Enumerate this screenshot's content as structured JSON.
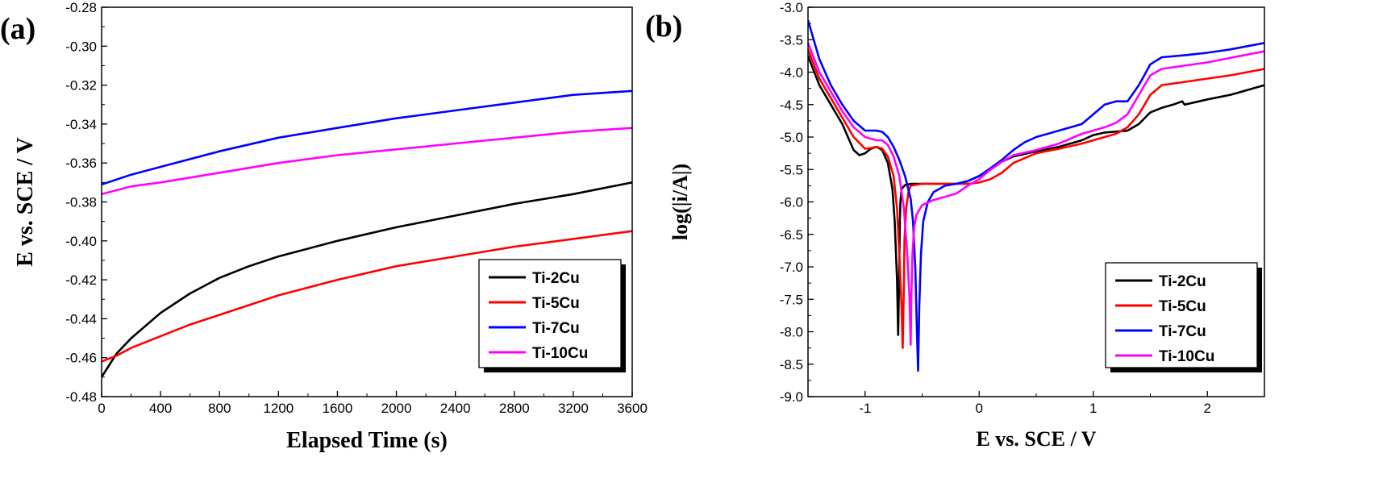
{
  "chart_data": [
    {
      "panel": "(a)",
      "type": "line",
      "xlabel": "Elapsed Time (s)",
      "ylabel": "E vs. SCE / V",
      "xlim": [
        0,
        3600
      ],
      "ylim": [
        -0.48,
        -0.28
      ],
      "xticks": [
        0,
        400,
        800,
        1200,
        1600,
        2000,
        2400,
        2800,
        3200,
        3600
      ],
      "xtick_labels": [
        "0",
        "400",
        "800",
        "1200",
        "1600",
        "2000",
        "2400",
        "2800",
        "3200",
        "3600"
      ],
      "yticks": [
        -0.28,
        -0.3,
        -0.32,
        -0.34,
        -0.36,
        -0.38,
        -0.4,
        -0.42,
        -0.44,
        -0.46,
        -0.48
      ],
      "ytick_labels": [
        "-0.28",
        "-0.30",
        "-0.32",
        "-0.34",
        "-0.36",
        "-0.38",
        "-0.40",
        "-0.42",
        "-0.44",
        "-0.46",
        "-0.48"
      ],
      "legend_position": "bottom-right",
      "series": [
        {
          "name": "Ti-2Cu",
          "color": "#000000",
          "x": [
            0,
            100,
            200,
            400,
            600,
            800,
            1000,
            1200,
            1600,
            2000,
            2400,
            2800,
            3200,
            3600
          ],
          "y": [
            -0.47,
            -0.458,
            -0.45,
            -0.437,
            -0.427,
            -0.419,
            -0.413,
            -0.408,
            -0.4,
            -0.393,
            -0.387,
            -0.381,
            -0.376,
            -0.37
          ]
        },
        {
          "name": "Ti-5Cu",
          "color": "#ff0000",
          "x": [
            0,
            100,
            200,
            400,
            600,
            800,
            1000,
            1200,
            1600,
            2000,
            2400,
            2800,
            3200,
            3600
          ],
          "y": [
            -0.462,
            -0.459,
            -0.455,
            -0.449,
            -0.443,
            -0.438,
            -0.433,
            -0.428,
            -0.42,
            -0.413,
            -0.408,
            -0.403,
            -0.399,
            -0.395
          ]
        },
        {
          "name": "Ti-7Cu",
          "color": "#0000ff",
          "x": [
            0,
            200,
            400,
            800,
            1200,
            1600,
            2000,
            2400,
            2800,
            3200,
            3600
          ],
          "y": [
            -0.371,
            -0.366,
            -0.362,
            -0.354,
            -0.347,
            -0.342,
            -0.337,
            -0.333,
            -0.329,
            -0.325,
            -0.323
          ]
        },
        {
          "name": "Ti-10Cu",
          "color": "#ff00ff",
          "x": [
            0,
            200,
            400,
            800,
            1200,
            1600,
            2000,
            2400,
            2800,
            3200,
            3600
          ],
          "y": [
            -0.376,
            -0.372,
            -0.37,
            -0.365,
            -0.36,
            -0.356,
            -0.353,
            -0.35,
            -0.347,
            -0.344,
            -0.342
          ]
        }
      ]
    },
    {
      "panel": "(b)",
      "type": "line",
      "xlabel": "E vs. SCE / V",
      "ylabel": "log(|i/A|)",
      "xlim": [
        -1.5,
        2.5
      ],
      "ylim": [
        -9.0,
        -3.0
      ],
      "xticks": [
        -1,
        0,
        1,
        2
      ],
      "xtick_labels": [
        "-1",
        "0",
        "1",
        "2"
      ],
      "yticks": [
        -3.0,
        -3.5,
        -4.0,
        -4.5,
        -5.0,
        -5.5,
        -6.0,
        -6.5,
        -7.0,
        -7.5,
        -8.0,
        -8.5,
        -9.0
      ],
      "ytick_labels": [
        "-3.0",
        "-3.5",
        "-4.0",
        "-4.5",
        "-5.0",
        "-5.5",
        "-6.0",
        "-6.5",
        "-7.0",
        "-7.5",
        "-8.0",
        "-8.5",
        "-9.0"
      ],
      "legend_position": "bottom-right",
      "series": [
        {
          "name": "Ti-2Cu",
          "color": "#000000",
          "x": [
            -1.5,
            -1.4,
            -1.3,
            -1.2,
            -1.1,
            -1.05,
            -1.0,
            -0.95,
            -0.9,
            -0.85,
            -0.8,
            -0.76,
            -0.74,
            -0.72,
            -0.71,
            -0.7,
            -0.695,
            -0.69,
            -0.68,
            -0.65,
            -0.6,
            -0.5,
            -0.4,
            -0.3,
            -0.2,
            -0.1,
            0.0,
            0.1,
            0.2,
            0.3,
            0.5,
            0.7,
            0.9,
            1.0,
            1.1,
            1.3,
            1.4,
            1.5,
            1.6,
            1.7,
            1.78,
            1.8,
            2.0,
            2.2,
            2.5
          ],
          "y": [
            -3.75,
            -4.2,
            -4.5,
            -4.8,
            -5.2,
            -5.28,
            -5.25,
            -5.18,
            -5.15,
            -5.2,
            -5.4,
            -5.8,
            -6.3,
            -7.2,
            -8.05,
            -7.0,
            -6.3,
            -6.0,
            -5.8,
            -5.74,
            -5.72,
            -5.72,
            -5.72,
            -5.72,
            -5.72,
            -5.68,
            -5.6,
            -5.5,
            -5.38,
            -5.3,
            -5.22,
            -5.15,
            -5.05,
            -4.97,
            -4.93,
            -4.9,
            -4.8,
            -4.62,
            -4.55,
            -4.5,
            -4.45,
            -4.5,
            -4.42,
            -4.35,
            -4.2
          ]
        },
        {
          "name": "Ti-5Cu",
          "color": "#ff0000",
          "x": [
            -1.5,
            -1.4,
            -1.3,
            -1.2,
            -1.1,
            -1.0,
            -0.95,
            -0.9,
            -0.85,
            -0.8,
            -0.75,
            -0.72,
            -0.7,
            -0.68,
            -0.67,
            -0.66,
            -0.655,
            -0.64,
            -0.62,
            -0.6,
            -0.5,
            -0.4,
            -0.3,
            -0.2,
            -0.1,
            0.0,
            0.1,
            0.2,
            0.3,
            0.5,
            0.7,
            0.9,
            1.0,
            1.2,
            1.3,
            1.4,
            1.5,
            1.6,
            1.8,
            2.0,
            2.2,
            2.5
          ],
          "y": [
            -3.65,
            -4.1,
            -4.4,
            -4.7,
            -5.0,
            -5.18,
            -5.17,
            -5.15,
            -5.18,
            -5.3,
            -5.6,
            -6.1,
            -6.8,
            -7.6,
            -8.25,
            -7.3,
            -6.6,
            -6.1,
            -5.85,
            -5.75,
            -5.72,
            -5.72,
            -5.72,
            -5.72,
            -5.72,
            -5.7,
            -5.65,
            -5.55,
            -5.4,
            -5.25,
            -5.18,
            -5.1,
            -5.05,
            -4.95,
            -4.85,
            -4.65,
            -4.35,
            -4.2,
            -4.15,
            -4.1,
            -4.05,
            -3.95
          ]
        },
        {
          "name": "Ti-7Cu",
          "color": "#0000ff",
          "x": [
            -1.5,
            -1.4,
            -1.3,
            -1.2,
            -1.1,
            -1.0,
            -0.9,
            -0.85,
            -0.8,
            -0.75,
            -0.7,
            -0.65,
            -0.6,
            -0.58,
            -0.56,
            -0.545,
            -0.535,
            -0.525,
            -0.51,
            -0.49,
            -0.45,
            -0.4,
            -0.3,
            -0.2,
            -0.1,
            0.0,
            0.1,
            0.2,
            0.3,
            0.4,
            0.5,
            0.7,
            0.9,
            1.0,
            1.1,
            1.2,
            1.3,
            1.4,
            1.5,
            1.6,
            1.8,
            2.0,
            2.2,
            2.5
          ],
          "y": [
            -3.2,
            -3.8,
            -4.2,
            -4.5,
            -4.75,
            -4.9,
            -4.9,
            -4.92,
            -5.0,
            -5.15,
            -5.35,
            -5.6,
            -5.95,
            -6.3,
            -7.0,
            -8.0,
            -8.6,
            -7.6,
            -6.8,
            -6.3,
            -6.0,
            -5.85,
            -5.75,
            -5.72,
            -5.68,
            -5.6,
            -5.48,
            -5.35,
            -5.2,
            -5.08,
            -5.0,
            -4.9,
            -4.8,
            -4.65,
            -4.5,
            -4.45,
            -4.45,
            -4.2,
            -3.88,
            -3.77,
            -3.74,
            -3.7,
            -3.65,
            -3.55
          ]
        },
        {
          "name": "Ti-10Cu",
          "color": "#ff00ff",
          "x": [
            -1.5,
            -1.4,
            -1.3,
            -1.2,
            -1.1,
            -1.0,
            -0.9,
            -0.85,
            -0.8,
            -0.75,
            -0.7,
            -0.66,
            -0.63,
            -0.61,
            -0.6,
            -0.595,
            -0.585,
            -0.57,
            -0.55,
            -0.5,
            -0.4,
            -0.3,
            -0.2,
            -0.1,
            0.0,
            0.1,
            0.2,
            0.3,
            0.5,
            0.7,
            0.9,
            1.0,
            1.1,
            1.2,
            1.3,
            1.4,
            1.5,
            1.6,
            1.8,
            2.0,
            2.2,
            2.5
          ],
          "y": [
            -3.55,
            -4.0,
            -4.3,
            -4.6,
            -4.85,
            -5.0,
            -5.05,
            -5.05,
            -5.12,
            -5.3,
            -5.6,
            -6.1,
            -6.8,
            -7.5,
            -8.2,
            -7.5,
            -6.8,
            -6.4,
            -6.2,
            -6.05,
            -5.97,
            -5.92,
            -5.87,
            -5.75,
            -5.65,
            -5.5,
            -5.38,
            -5.28,
            -5.2,
            -5.1,
            -4.95,
            -4.9,
            -4.85,
            -4.78,
            -4.65,
            -4.35,
            -4.05,
            -3.95,
            -3.9,
            -3.85,
            -3.78,
            -3.68
          ]
        }
      ]
    }
  ]
}
